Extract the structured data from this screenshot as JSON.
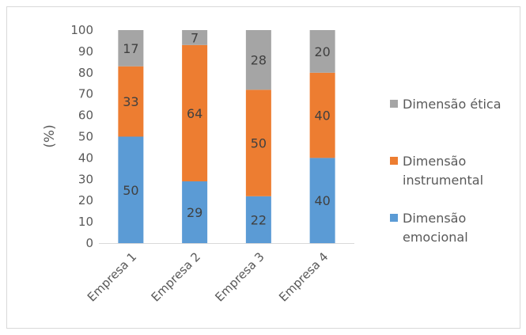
{
  "chart_data": {
    "type": "bar",
    "stacked": true,
    "categories": [
      "Empresa 1",
      "Empresa 2",
      "Empresa 3",
      "Empresa 4"
    ],
    "series": [
      {
        "name": "Dimensão emocional",
        "values": [
          50,
          29,
          22,
          40
        ],
        "color": "#5b9bd5"
      },
      {
        "name": "Dimensão instrumental",
        "values": [
          33,
          64,
          50,
          40
        ],
        "color": "#ed7d31"
      },
      {
        "name": "Dimensão ética",
        "values": [
          17,
          7,
          28,
          20
        ],
        "color": "#a5a5a5"
      }
    ],
    "y_ticks": [
      "0",
      "10",
      "20",
      "30",
      "40",
      "50",
      "60",
      "70",
      "80",
      "90",
      "100"
    ],
    "ylabel": "(%)",
    "xlabel": "",
    "title": "",
    "ylim": [
      0,
      100
    ],
    "grid": false,
    "legend_position": "right",
    "legend_order": [
      "Dimensão ética",
      "Dimensão instrumental",
      "Dimensão emocional"
    ],
    "legend_lines": {
      "Dimensão ética": [
        "Dimensão ética"
      ],
      "Dimensão instrumental": [
        "Dimensão",
        "instrumental"
      ],
      "Dimensão emocional": [
        "Dimensão",
        "emocional"
      ]
    }
  }
}
